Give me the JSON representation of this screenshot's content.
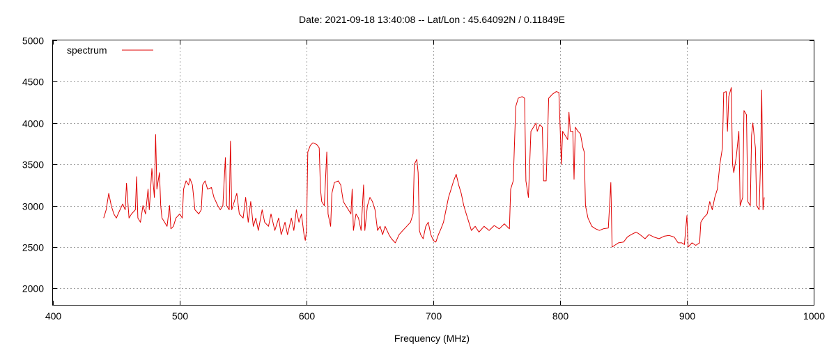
{
  "chart_data": {
    "type": "line",
    "title": "Date: 2021-09-18 13:40:08  --  Lat/Lon : 45.64092N / 0.11849E",
    "xlabel": "Frequency (MHz)",
    "ylabel": "",
    "xlim": [
      400,
      1000
    ],
    "ylim": [
      1800,
      5000
    ],
    "xticks": [
      400,
      500,
      600,
      700,
      800,
      900,
      1000
    ],
    "yticks": [
      2000,
      2500,
      3000,
      3500,
      4000,
      4500,
      5000
    ],
    "grid": true,
    "legend_position": "top-left",
    "series": [
      {
        "name": "spectrum",
        "color": "#e00000",
        "points": [
          [
            440,
            2850
          ],
          [
            442,
            2950
          ],
          [
            444,
            3150
          ],
          [
            446,
            3000
          ],
          [
            448,
            2900
          ],
          [
            450,
            2850
          ],
          [
            452,
            2920
          ],
          [
            455,
            3020
          ],
          [
            457,
            2950
          ],
          [
            458,
            3270
          ],
          [
            460,
            2850
          ],
          [
            462,
            2900
          ],
          [
            465,
            2950
          ],
          [
            466,
            3350
          ],
          [
            467,
            2850
          ],
          [
            469,
            2800
          ],
          [
            471,
            3000
          ],
          [
            473,
            2900
          ],
          [
            475,
            3200
          ],
          [
            476,
            2950
          ],
          [
            478,
            3450
          ],
          [
            480,
            3100
          ],
          [
            481,
            3860
          ],
          [
            482,
            3200
          ],
          [
            484,
            3400
          ],
          [
            485,
            3000
          ],
          [
            486,
            2850
          ],
          [
            488,
            2800
          ],
          [
            490,
            2750
          ],
          [
            492,
            3000
          ],
          [
            493,
            2720
          ],
          [
            495,
            2750
          ],
          [
            497,
            2850
          ],
          [
            500,
            2900
          ],
          [
            502,
            2850
          ],
          [
            503,
            3200
          ],
          [
            505,
            3300
          ],
          [
            507,
            3250
          ],
          [
            508,
            3330
          ],
          [
            510,
            3250
          ],
          [
            512,
            2950
          ],
          [
            515,
            2900
          ],
          [
            517,
            2950
          ],
          [
            518,
            3250
          ],
          [
            520,
            3300
          ],
          [
            522,
            3200
          ],
          [
            525,
            3220
          ],
          [
            527,
            3100
          ],
          [
            530,
            3000
          ],
          [
            532,
            2950
          ],
          [
            534,
            3000
          ],
          [
            536,
            3580
          ],
          [
            537,
            3000
          ],
          [
            539,
            2950
          ],
          [
            540,
            3780
          ],
          [
            541,
            2950
          ],
          [
            543,
            3050
          ],
          [
            545,
            3150
          ],
          [
            547,
            2900
          ],
          [
            550,
            2850
          ],
          [
            552,
            3100
          ],
          [
            554,
            2800
          ],
          [
            556,
            3050
          ],
          [
            558,
            2750
          ],
          [
            560,
            2850
          ],
          [
            562,
            2700
          ],
          [
            565,
            2950
          ],
          [
            567,
            2800
          ],
          [
            570,
            2750
          ],
          [
            572,
            2900
          ],
          [
            575,
            2700
          ],
          [
            578,
            2850
          ],
          [
            580,
            2650
          ],
          [
            583,
            2800
          ],
          [
            585,
            2650
          ],
          [
            588,
            2850
          ],
          [
            590,
            2700
          ],
          [
            592,
            2950
          ],
          [
            594,
            2800
          ],
          [
            596,
            2900
          ],
          [
            598,
            2650
          ],
          [
            599,
            2580
          ],
          [
            600,
            2700
          ],
          [
            601,
            3650
          ],
          [
            603,
            3730
          ],
          [
            605,
            3760
          ],
          [
            608,
            3740
          ],
          [
            610,
            3700
          ],
          [
            611,
            3200
          ],
          [
            612,
            3050
          ],
          [
            614,
            3000
          ],
          [
            616,
            3650
          ],
          [
            617,
            2900
          ],
          [
            619,
            2750
          ],
          [
            620,
            3150
          ],
          [
            622,
            3280
          ],
          [
            625,
            3300
          ],
          [
            627,
            3250
          ],
          [
            629,
            3050
          ],
          [
            631,
            3000
          ],
          [
            633,
            2950
          ],
          [
            635,
            2900
          ],
          [
            636,
            3200
          ],
          [
            637,
            2700
          ],
          [
            639,
            2900
          ],
          [
            641,
            2850
          ],
          [
            643,
            2700
          ],
          [
            645,
            3250
          ],
          [
            646,
            2700
          ],
          [
            648,
            3000
          ],
          [
            650,
            3100
          ],
          [
            652,
            3050
          ],
          [
            654,
            2950
          ],
          [
            656,
            2700
          ],
          [
            658,
            2750
          ],
          [
            660,
            2650
          ],
          [
            662,
            2750
          ],
          [
            665,
            2650
          ],
          [
            667,
            2600
          ],
          [
            670,
            2550
          ],
          [
            673,
            2650
          ],
          [
            676,
            2700
          ],
          [
            679,
            2750
          ],
          [
            682,
            2800
          ],
          [
            684,
            2900
          ],
          [
            685,
            3500
          ],
          [
            687,
            3560
          ],
          [
            688,
            3400
          ],
          [
            689,
            2700
          ],
          [
            690,
            2650
          ],
          [
            692,
            2600
          ],
          [
            694,
            2750
          ],
          [
            696,
            2800
          ],
          [
            698,
            2650
          ],
          [
            700,
            2580
          ],
          [
            702,
            2560
          ],
          [
            704,
            2650
          ],
          [
            706,
            2720
          ],
          [
            708,
            2800
          ],
          [
            710,
            2950
          ],
          [
            712,
            3100
          ],
          [
            714,
            3200
          ],
          [
            716,
            3300
          ],
          [
            718,
            3380
          ],
          [
            720,
            3250
          ],
          [
            722,
            3150
          ],
          [
            724,
            3000
          ],
          [
            726,
            2900
          ],
          [
            728,
            2800
          ],
          [
            730,
            2700
          ],
          [
            733,
            2750
          ],
          [
            736,
            2680
          ],
          [
            740,
            2750
          ],
          [
            744,
            2700
          ],
          [
            748,
            2760
          ],
          [
            752,
            2720
          ],
          [
            756,
            2780
          ],
          [
            760,
            2720
          ],
          [
            761,
            3200
          ],
          [
            763,
            3300
          ],
          [
            765,
            4200
          ],
          [
            767,
            4300
          ],
          [
            770,
            4320
          ],
          [
            772,
            4300
          ],
          [
            773,
            3300
          ],
          [
            774,
            3200
          ],
          [
            775,
            3100
          ],
          [
            777,
            3900
          ],
          [
            779,
            3950
          ],
          [
            781,
            4000
          ],
          [
            782,
            3900
          ],
          [
            784,
            3980
          ],
          [
            786,
            3950
          ],
          [
            787,
            3300
          ],
          [
            789,
            3300
          ],
          [
            791,
            4300
          ],
          [
            794,
            4350
          ],
          [
            797,
            4380
          ],
          [
            799,
            4370
          ],
          [
            800,
            3950
          ],
          [
            801,
            3500
          ],
          [
            802,
            3900
          ],
          [
            804,
            3850
          ],
          [
            806,
            3800
          ],
          [
            807,
            4130
          ],
          [
            808,
            3900
          ],
          [
            810,
            3900
          ],
          [
            811,
            3320
          ],
          [
            812,
            3950
          ],
          [
            814,
            3900
          ],
          [
            816,
            3870
          ],
          [
            818,
            3700
          ],
          [
            819,
            3650
          ],
          [
            820,
            3000
          ],
          [
            822,
            2850
          ],
          [
            825,
            2750
          ],
          [
            828,
            2720
          ],
          [
            831,
            2700
          ],
          [
            834,
            2720
          ],
          [
            838,
            2730
          ],
          [
            840,
            3280
          ],
          [
            841,
            2500
          ],
          [
            843,
            2520
          ],
          [
            846,
            2550
          ],
          [
            850,
            2560
          ],
          [
            853,
            2620
          ],
          [
            856,
            2650
          ],
          [
            860,
            2680
          ],
          [
            863,
            2650
          ],
          [
            867,
            2600
          ],
          [
            870,
            2650
          ],
          [
            874,
            2620
          ],
          [
            878,
            2600
          ],
          [
            882,
            2630
          ],
          [
            886,
            2640
          ],
          [
            890,
            2620
          ],
          [
            893,
            2550
          ],
          [
            896,
            2550
          ],
          [
            898,
            2530
          ],
          [
            900,
            2880
          ],
          [
            901,
            2500
          ],
          [
            904,
            2550
          ],
          [
            907,
            2520
          ],
          [
            910,
            2550
          ],
          [
            911,
            2800
          ],
          [
            913,
            2850
          ],
          [
            916,
            2900
          ],
          [
            918,
            3050
          ],
          [
            920,
            2950
          ],
          [
            922,
            3100
          ],
          [
            924,
            3200
          ],
          [
            926,
            3500
          ],
          [
            928,
            3700
          ],
          [
            929,
            4370
          ],
          [
            931,
            4380
          ],
          [
            932,
            3900
          ],
          [
            933,
            4320
          ],
          [
            935,
            4430
          ],
          [
            936,
            3500
          ],
          [
            937,
            3400
          ],
          [
            939,
            3600
          ],
          [
            941,
            3900
          ],
          [
            942,
            3000
          ],
          [
            944,
            3100
          ],
          [
            945,
            4150
          ],
          [
            947,
            4100
          ],
          [
            948,
            3050
          ],
          [
            950,
            3000
          ],
          [
            951,
            3850
          ],
          [
            952,
            4000
          ],
          [
            954,
            3700
          ],
          [
            955,
            3000
          ],
          [
            957,
            2950
          ],
          [
            958,
            3500
          ],
          [
            959,
            4400
          ],
          [
            960,
            2950
          ],
          [
            961,
            3100
          ]
        ]
      }
    ]
  }
}
